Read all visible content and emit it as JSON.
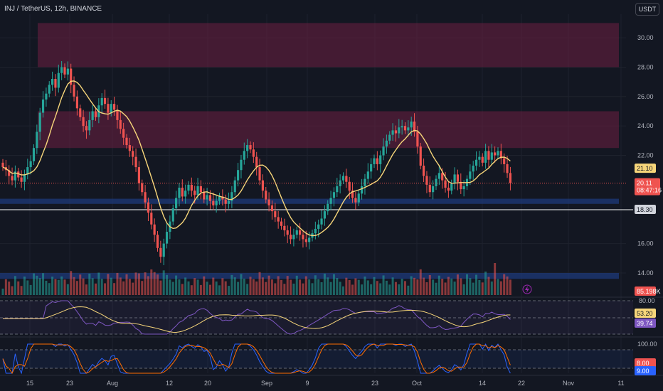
{
  "header": {
    "title": "INJ / TetherUS, 12h, BINANCE",
    "currency_button": "USDT"
  },
  "colors": {
    "background": "#131722",
    "up": "#26a69a",
    "down": "#ef5350",
    "ma": "#f7d67a",
    "rsi": "#7e57c2",
    "rsi_ma": "#f7d67a",
    "stoch_k": "#2962ff",
    "stoch_d": "#ff6d00",
    "resistance_zone": "#6d1f42",
    "support_zone": "#1e3a7a",
    "level_line": "#ffffff"
  },
  "badges": {
    "ma_value": "21.10",
    "last_price": "20.11",
    "countdown": "08:47:16",
    "level_price": "18.30",
    "volume_value": "85.198K",
    "rsi_value": "53.20",
    "rsi_ma_value": "39.74",
    "stoch_k_value": "8.00",
    "stoch_d_value": "9.00"
  },
  "chart_data": {
    "type": "candlestick",
    "x_ticks": [
      "15",
      "23",
      "Aug",
      "12",
      "20",
      "Sep",
      "9",
      "23",
      "Oct",
      "14",
      "22",
      "Nov",
      "11"
    ],
    "y_ticks": [
      "30.00",
      "28.00",
      "26.00",
      "24.00",
      "22.00",
      "16.00",
      "14.00"
    ],
    "ylim": [
      12.5,
      31.6
    ],
    "zones": [
      {
        "from": 28.0,
        "to": 31.0,
        "kind": "resistance"
      },
      {
        "from": 22.5,
        "to": 25.0,
        "kind": "resistance"
      },
      {
        "from": 18.7,
        "to": 19.05,
        "kind": "support"
      },
      {
        "from": 13.6,
        "to": 14.0,
        "kind": "support"
      }
    ],
    "horizontal_line": 18.3,
    "closes": [
      21.2,
      21.0,
      20.6,
      20.3,
      20.9,
      20.5,
      20.2,
      20.7,
      21.2,
      21.6,
      22.5,
      23.6,
      24.9,
      25.8,
      26.2,
      26.8,
      27.2,
      26.6,
      27.6,
      28.0,
      27.5,
      27.9,
      26.8,
      26.0,
      25.2,
      24.6,
      24.0,
      23.7,
      24.4,
      25.0,
      24.6,
      25.4,
      25.9,
      25.5,
      24.9,
      25.5,
      25.1,
      24.4,
      23.8,
      23.2,
      22.7,
      22.3,
      21.9,
      21.2,
      20.1,
      19.5,
      18.8,
      18.1,
      17.3,
      16.6,
      15.7,
      15.1,
      16.0,
      16.8,
      17.5,
      18.4,
      19.1,
      19.8,
      19.2,
      19.6,
      20.0,
      19.6,
      19.3,
      19.9,
      19.5,
      19.0,
      19.3,
      18.9,
      18.6,
      18.9,
      19.2,
      19.0,
      18.7,
      18.9,
      19.5,
      20.3,
      21.0,
      21.7,
      22.3,
      22.7,
      22.4,
      21.9,
      21.2,
      20.3,
      19.6,
      19.0,
      18.6,
      18.2,
      17.8,
      17.5,
      17.2,
      16.9,
      16.6,
      16.3,
      16.6,
      16.9,
      16.6,
      16.3,
      16.1,
      16.4,
      16.7,
      17.0,
      17.3,
      17.7,
      18.2,
      18.7,
      19.1,
      19.5,
      19.9,
      20.3,
      20.6,
      20.2,
      19.6,
      19.1,
      18.8,
      19.4,
      19.9,
      20.4,
      20.9,
      21.4,
      21.8,
      21.4,
      22.0,
      22.6,
      23.0,
      23.4,
      23.7,
      23.5,
      23.9,
      24.0,
      23.7,
      23.9,
      24.3,
      23.6,
      22.6,
      21.3,
      20.6,
      20.0,
      19.5,
      19.9,
      20.4,
      20.8,
      20.3,
      19.8,
      19.6,
      20.1,
      20.7,
      20.2,
      19.7,
      19.9,
      20.4,
      20.9,
      21.3,
      21.7,
      21.9,
      21.5,
      22.3,
      21.7,
      22.2,
      22.0,
      22.3,
      21.8,
      21.4,
      20.8,
      20.11
    ],
    "volume_max": 150
  }
}
